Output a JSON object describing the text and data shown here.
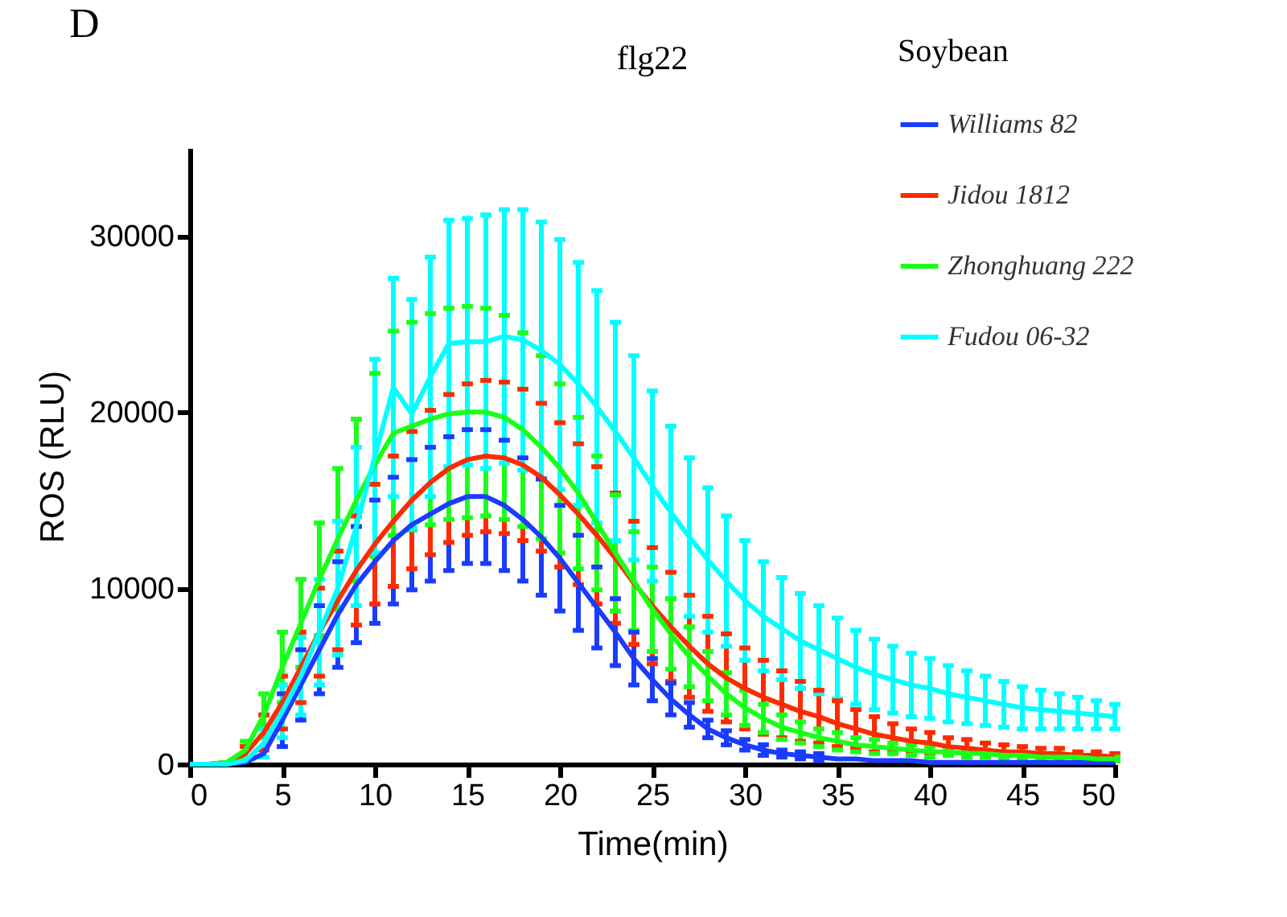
{
  "chart_data": {
    "type": "line",
    "title": "flg22",
    "xlabel": "Time(min)",
    "ylabel": "ROS  (RLU)",
    "legend_title": "Soybean",
    "annotations": [
      "D"
    ],
    "x": [
      0,
      1,
      2,
      3,
      4,
      5,
      6,
      7,
      8,
      9,
      10,
      11,
      12,
      13,
      14,
      15,
      16,
      17,
      18,
      19,
      20,
      21,
      22,
      23,
      24,
      25,
      26,
      27,
      28,
      29,
      30,
      31,
      32,
      33,
      34,
      35,
      36,
      37,
      38,
      39,
      40,
      41,
      42,
      43,
      44,
      45,
      46,
      47,
      48,
      49,
      50
    ],
    "xlim": [
      0,
      50
    ],
    "xticks": [
      0,
      5,
      10,
      15,
      20,
      25,
      30,
      35,
      40,
      45,
      50
    ],
    "ylim": [
      0,
      35000
    ],
    "yticks": [
      0,
      10000,
      20000,
      30000
    ],
    "grid": false,
    "legend": "top right",
    "marker": "none",
    "line_style": "solid",
    "series": [
      {
        "name": "Williams 82",
        "color": "#1a3cff",
        "values": [
          0,
          0,
          0,
          100,
          600,
          2500,
          4500,
          6500,
          8500,
          10200,
          11500,
          12700,
          13600,
          14200,
          14800,
          15200,
          15200,
          14700,
          13900,
          12900,
          11700,
          10300,
          8900,
          7500,
          6000,
          4800,
          3700,
          2800,
          2000,
          1500,
          1100,
          800,
          600,
          500,
          400,
          300,
          300,
          200,
          200,
          200,
          100,
          100,
          100,
          100,
          100,
          100,
          100,
          100,
          100,
          100,
          100
        ],
        "errors": [
          null,
          null,
          null,
          null,
          null,
          1500,
          2000,
          2500,
          3000,
          3300,
          3500,
          3600,
          3700,
          3800,
          3800,
          3800,
          3800,
          3700,
          3500,
          3300,
          3000,
          2700,
          2300,
          1900,
          1500,
          1200,
          900,
          700,
          500,
          400,
          300,
          300,
          200,
          200,
          200,
          null,
          null,
          null,
          null,
          null,
          null,
          null,
          null,
          null,
          null,
          null,
          null,
          null,
          null,
          null,
          null
        ]
      },
      {
        "name": "Jidou 1812",
        "color": "#ff2a00",
        "values": [
          0,
          0,
          100,
          600,
          1800,
          3500,
          5500,
          7500,
          9300,
          11000,
          12500,
          13800,
          15000,
          16000,
          16800,
          17300,
          17500,
          17400,
          17000,
          16300,
          15300,
          14200,
          13000,
          11700,
          10300,
          9000,
          7800,
          6700,
          5700,
          4900,
          4300,
          3800,
          3400,
          3000,
          2700,
          2300,
          2000,
          1700,
          1500,
          1300,
          1200,
          1000,
          900,
          800,
          700,
          700,
          600,
          600,
          500,
          500,
          400
        ],
        "errors": [
          null,
          null,
          null,
          400,
          1000,
          1500,
          2000,
          2500,
          2800,
          3100,
          3400,
          3700,
          3900,
          4100,
          4200,
          4300,
          4300,
          4300,
          4300,
          4200,
          4100,
          4000,
          3900,
          3700,
          3500,
          3300,
          3100,
          2900,
          2700,
          2500,
          2300,
          2100,
          1900,
          1700,
          1500,
          1300,
          1100,
          1000,
          800,
          700,
          600,
          500,
          500,
          400,
          400,
          300,
          300,
          300,
          200,
          200,
          200
        ]
      },
      {
        "name": "Zhonghuang 222",
        "color": "#1aff1a",
        "values": [
          0,
          0,
          100,
          800,
          2800,
          5500,
          8000,
          10500,
          12800,
          15000,
          17000,
          18800,
          19200,
          19600,
          19900,
          20000,
          20000,
          19700,
          19000,
          18000,
          16800,
          15400,
          13700,
          12000,
          10400,
          8800,
          7400,
          6100,
          5000,
          4000,
          3200,
          2600,
          2100,
          1800,
          1500,
          1300,
          1100,
          1000,
          900,
          800,
          700,
          700,
          600,
          600,
          500,
          500,
          400,
          400,
          400,
          300,
          300
        ],
        "errors": [
          null,
          null,
          null,
          500,
          1200,
          2000,
          2500,
          3200,
          4000,
          4600,
          5200,
          5800,
          5900,
          6000,
          6000,
          6000,
          5900,
          5800,
          5500,
          5200,
          4800,
          4300,
          3800,
          3300,
          2800,
          2400,
          2000,
          1700,
          1400,
          1200,
          1000,
          800,
          700,
          600,
          500,
          500,
          400,
          400,
          300,
          300,
          300,
          200,
          200,
          200,
          200,
          200,
          200,
          200,
          100,
          100,
          100
        ]
      },
      {
        "name": "Fudou 06-32",
        "color": "#00ffff",
        "values": [
          0,
          0,
          0,
          200,
          1200,
          3000,
          5000,
          7500,
          10000,
          13500,
          17500,
          21400,
          19900,
          22000,
          23900,
          24000,
          24000,
          24300,
          24100,
          23500,
          22700,
          21600,
          20300,
          18900,
          17400,
          15800,
          14300,
          12900,
          11600,
          10400,
          9300,
          8400,
          7700,
          7000,
          6500,
          6000,
          5500,
          5100,
          4800,
          4500,
          4300,
          4000,
          3800,
          3600,
          3400,
          3200,
          3100,
          3000,
          2900,
          2800,
          2700
        ],
        "errors": [
          null,
          null,
          null,
          null,
          800,
          1500,
          2200,
          3000,
          3800,
          4500,
          5500,
          6200,
          6500,
          6800,
          7000,
          7000,
          7200,
          7200,
          7400,
          7300,
          7100,
          6900,
          6600,
          6200,
          5800,
          5400,
          4900,
          4500,
          4100,
          3700,
          3400,
          3100,
          2900,
          2700,
          2500,
          2300,
          2100,
          2000,
          1900,
          1800,
          1700,
          1600,
          1500,
          1400,
          1300,
          1200,
          1100,
          1000,
          900,
          800,
          700
        ]
      }
    ]
  }
}
